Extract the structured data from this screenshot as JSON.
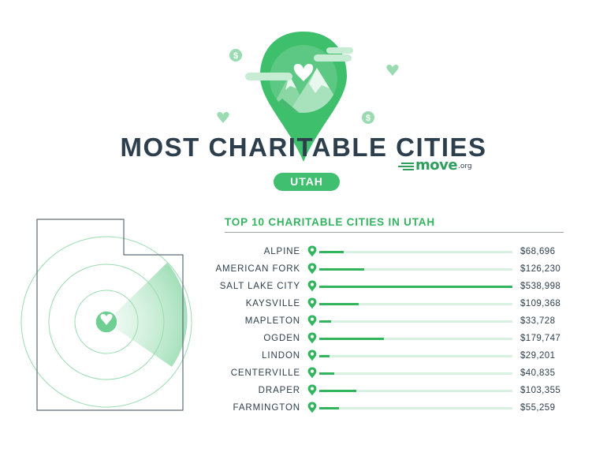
{
  "header": {
    "title": "MOST CHARITABLE CITIES",
    "state": "UTAH",
    "brand": {
      "name": "move",
      "tld": ".org"
    }
  },
  "icons": {
    "hero": "map-pin-mountain-icon",
    "decorations": [
      "dollar-coin-icon",
      "heart-icon",
      "cloud-icon"
    ],
    "map_center": "heart-icon",
    "row_marker": "map-pin-icon"
  },
  "colors": {
    "primary_green": "#33b45e",
    "light_green": "#d8f1e0",
    "text_dark": "#2d3e4c"
  },
  "chart_data": {
    "type": "bar",
    "orientation": "horizontal",
    "title": "TOP 10 CHARITABLE CITIES IN UTAH",
    "categories": [
      "ALPINE",
      "AMERICAN FORK",
      "SALT LAKE CITY",
      "KAYSVILLE",
      "MAPLETON",
      "OGDEN",
      "LINDON",
      "CENTERVILLE",
      "DRAPER",
      "FARMINGTON"
    ],
    "values": [
      68696,
      126230,
      538998,
      109368,
      33728,
      179747,
      29201,
      40835,
      103355,
      55259
    ],
    "value_labels": [
      "$68,696",
      "$126,230",
      "$538,998",
      "$109,368",
      "$33,728",
      "$179,747",
      "$29,201",
      "$40,835",
      "$103,355",
      "$55,259"
    ],
    "xlim": [
      0,
      538998
    ],
    "grid": false,
    "legend": "none"
  }
}
